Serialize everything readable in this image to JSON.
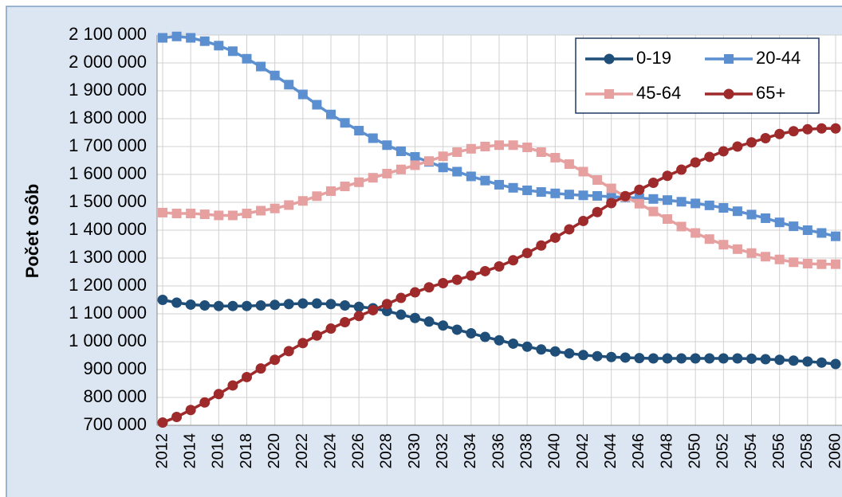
{
  "chart_data": {
    "type": "line",
    "y_label": "Počet osôb",
    "x": [
      2012,
      2013,
      2014,
      2015,
      2016,
      2017,
      2018,
      2019,
      2020,
      2021,
      2022,
      2023,
      2024,
      2025,
      2026,
      2027,
      2028,
      2029,
      2030,
      2031,
      2032,
      2033,
      2034,
      2035,
      2036,
      2037,
      2038,
      2039,
      2040,
      2041,
      2042,
      2043,
      2044,
      2045,
      2046,
      2047,
      2048,
      2049,
      2050,
      2051,
      2052,
      2053,
      2054,
      2055,
      2056,
      2057,
      2058,
      2059,
      2060
    ],
    "xlim": [
      2012,
      2060
    ],
    "xticks": [
      2012,
      2014,
      2016,
      2018,
      2020,
      2022,
      2024,
      2026,
      2028,
      2030,
      2032,
      2034,
      2036,
      2038,
      2040,
      2042,
      2044,
      2046,
      2048,
      2050,
      2052,
      2054,
      2056,
      2058,
      2060
    ],
    "ylim": [
      700000,
      2100000
    ],
    "yticks": [
      {
        "value": 700000,
        "label": "700 000"
      },
      {
        "value": 800000,
        "label": "800 000"
      },
      {
        "value": 900000,
        "label": "900 000"
      },
      {
        "value": 1000000,
        "label": "1 000 000"
      },
      {
        "value": 1100000,
        "label": "1 100 000"
      },
      {
        "value": 1200000,
        "label": "1 200 000"
      },
      {
        "value": 1300000,
        "label": "1 300 000"
      },
      {
        "value": 1400000,
        "label": "1 400 000"
      },
      {
        "value": 1500000,
        "label": "1 500 000"
      },
      {
        "value": 1600000,
        "label": "1 600 000"
      },
      {
        "value": 1700000,
        "label": "1 700 000"
      },
      {
        "value": 1800000,
        "label": "1 800 000"
      },
      {
        "value": 1900000,
        "label": "1 900 000"
      },
      {
        "value": 2000000,
        "label": "2 000 000"
      },
      {
        "value": 2100000,
        "label": "2 100 000"
      }
    ],
    "grid": true,
    "legend": "top-right",
    "series": [
      {
        "name": "0-19",
        "color": "#1f4e79",
        "marker": "circle",
        "values": [
          1150000,
          1140000,
          1133000,
          1130000,
          1128000,
          1128000,
          1128000,
          1130000,
          1132000,
          1135000,
          1137000,
          1137000,
          1135000,
          1130000,
          1125000,
          1120000,
          1110000,
          1097000,
          1085000,
          1072000,
          1058000,
          1043000,
          1030000,
          1017000,
          1005000,
          993000,
          982000,
          972000,
          965000,
          958000,
          952000,
          948000,
          945000,
          943000,
          941000,
          940000,
          940000,
          940000,
          940000,
          940000,
          940000,
          940000,
          939000,
          937000,
          935000,
          932000,
          929000,
          925000,
          920000
        ]
      },
      {
        "name": "20-44",
        "color": "#5b8fd0",
        "marker": "square",
        "values": [
          2090000,
          2095000,
          2090000,
          2078000,
          2062000,
          2042000,
          2015000,
          1987000,
          1955000,
          1922000,
          1887000,
          1850000,
          1815000,
          1785000,
          1757000,
          1730000,
          1705000,
          1683000,
          1663000,
          1645000,
          1625000,
          1610000,
          1593000,
          1578000,
          1563000,
          1552000,
          1543000,
          1537000,
          1532000,
          1528000,
          1525000,
          1523000,
          1520000,
          1518000,
          1515000,
          1512000,
          1508000,
          1502000,
          1496000,
          1489000,
          1480000,
          1468000,
          1456000,
          1443000,
          1428000,
          1414000,
          1400000,
          1390000,
          1378000
        ]
      },
      {
        "name": "45-64",
        "color": "#e6a0a0",
        "marker": "square",
        "values": [
          1463000,
          1460000,
          1460000,
          1457000,
          1453000,
          1453000,
          1460000,
          1470000,
          1478000,
          1490000,
          1505000,
          1522000,
          1540000,
          1557000,
          1572000,
          1588000,
          1603000,
          1618000,
          1633000,
          1648000,
          1665000,
          1680000,
          1692000,
          1700000,
          1705000,
          1705000,
          1697000,
          1680000,
          1660000,
          1637000,
          1610000,
          1580000,
          1550000,
          1520000,
          1495000,
          1467000,
          1440000,
          1413000,
          1390000,
          1368000,
          1348000,
          1332000,
          1318000,
          1305000,
          1295000,
          1285000,
          1280000,
          1278000,
          1278000
        ]
      },
      {
        "name": "65+",
        "color": "#9e2a2b",
        "marker": "circle",
        "values": [
          710000,
          730000,
          755000,
          782000,
          812000,
          843000,
          873000,
          904000,
          935000,
          966000,
          995000,
          1022000,
          1047000,
          1070000,
          1092000,
          1113000,
          1135000,
          1157000,
          1177000,
          1195000,
          1210000,
          1222000,
          1237000,
          1253000,
          1270000,
          1292000,
          1318000,
          1345000,
          1373000,
          1403000,
          1433000,
          1465000,
          1497000,
          1522000,
          1545000,
          1570000,
          1595000,
          1617000,
          1643000,
          1663000,
          1683000,
          1700000,
          1715000,
          1730000,
          1745000,
          1755000,
          1762000,
          1765000,
          1765000
        ]
      }
    ]
  }
}
